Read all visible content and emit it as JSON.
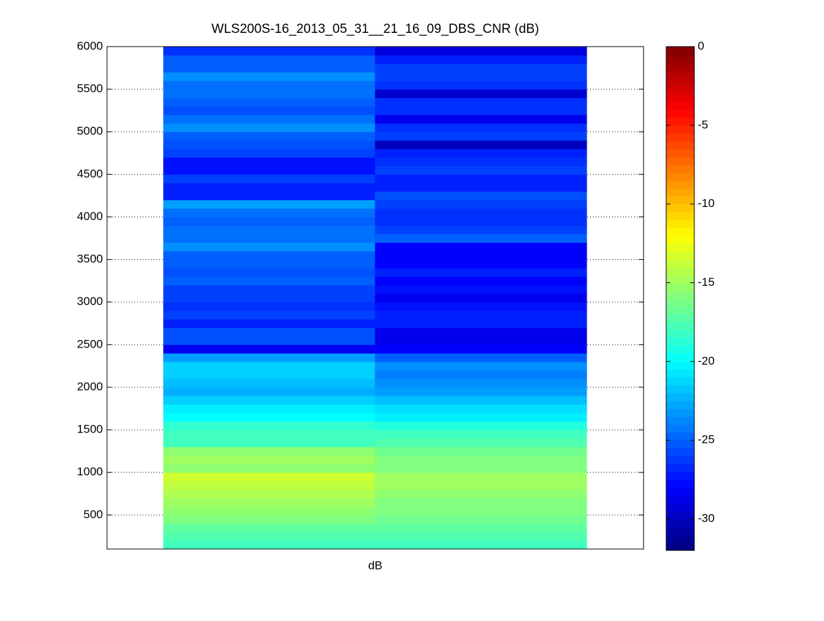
{
  "chart_data": {
    "type": "heatmap",
    "title": "WLS200S-16_2013_05_31__21_16_09_DBS_CNR (dB)",
    "x_label": "dB",
    "x": [
      null,
      null
    ],
    "y": [
      150,
      250,
      350,
      450,
      550,
      650,
      750,
      850,
      950,
      1050,
      1150,
      1250,
      1350,
      1450,
      1550,
      1650,
      1750,
      1850,
      1950,
      2050,
      2150,
      2250,
      2350,
      2450,
      2550,
      2650,
      2750,
      2850,
      2950,
      3050,
      3150,
      3250,
      3350,
      3450,
      3550,
      3650,
      3750,
      3850,
      3950,
      4050,
      4150,
      4250,
      4350,
      4450,
      4550,
      4650,
      4750,
      4850,
      4950,
      5050,
      5150,
      5250,
      5350,
      5450,
      5550,
      5650,
      5750,
      5850,
      5950
    ],
    "values": [
      [
        -18,
        -18
      ],
      [
        -17.5,
        -17.5
      ],
      [
        -17,
        -17
      ],
      [
        -16,
        -16.5
      ],
      [
        -15.5,
        -16
      ],
      [
        -15,
        -16
      ],
      [
        -14.5,
        -15.5
      ],
      [
        -14,
        -15
      ],
      [
        -13.5,
        -15
      ],
      [
        -15.5,
        -16
      ],
      [
        -15,
        -16
      ],
      [
        -15.5,
        -16.5
      ],
      [
        -18,
        -17.5
      ],
      [
        -18,
        -18
      ],
      [
        -18.5,
        -19
      ],
      [
        -20,
        -20.5
      ],
      [
        -20.5,
        -21
      ],
      [
        -21.5,
        -22
      ],
      [
        -22.5,
        -23
      ],
      [
        -22,
        -23.5
      ],
      [
        -21.5,
        -24
      ],
      [
        -21.5,
        -23.5
      ],
      [
        -23,
        -25
      ],
      [
        -28.5,
        -28
      ],
      [
        -25.5,
        -28.5
      ],
      [
        -25.5,
        -28.5
      ],
      [
        -27,
        -27
      ],
      [
        -26,
        -27
      ],
      [
        -26.5,
        -27.5
      ],
      [
        -26,
        -28.5
      ],
      [
        -26,
        -27.5
      ],
      [
        -25,
        -28
      ],
      [
        -25.5,
        -27
      ],
      [
        -25,
        -28
      ],
      [
        -25,
        -28
      ],
      [
        -23.5,
        -28
      ],
      [
        -24.5,
        -25
      ],
      [
        -24.5,
        -26
      ],
      [
        -25,
        -26.5
      ],
      [
        -24.5,
        -26.5
      ],
      [
        -23,
        -26
      ],
      [
        -27,
        -25.5
      ],
      [
        -27,
        -27
      ],
      [
        -26,
        -27
      ],
      [
        -27.5,
        -26
      ],
      [
        -27.5,
        -26.5
      ],
      [
        -26,
        -27
      ],
      [
        -25.5,
        -30
      ],
      [
        -25,
        -26
      ],
      [
        -23.5,
        -26.5
      ],
      [
        -24.5,
        -28.5
      ],
      [
        -25.5,
        -26.5
      ],
      [
        -25,
        -26.5
      ],
      [
        -24.5,
        -29.5
      ],
      [
        -24.5,
        -26.5
      ],
      [
        -23.5,
        -26
      ],
      [
        -25,
        -26
      ],
      [
        -25,
        -27
      ],
      [
        -26.5,
        -29
      ]
    ],
    "ylim": [
      100,
      6000
    ],
    "yticks": [
      500,
      1000,
      1500,
      2000,
      2500,
      3000,
      3500,
      4000,
      4500,
      5000,
      5500,
      6000
    ],
    "grid": true,
    "colormap": "jet",
    "clim": [
      -32,
      0
    ],
    "colorbar_ticks": [
      -30,
      -25,
      -20,
      -15,
      -10,
      -5,
      0
    ]
  }
}
